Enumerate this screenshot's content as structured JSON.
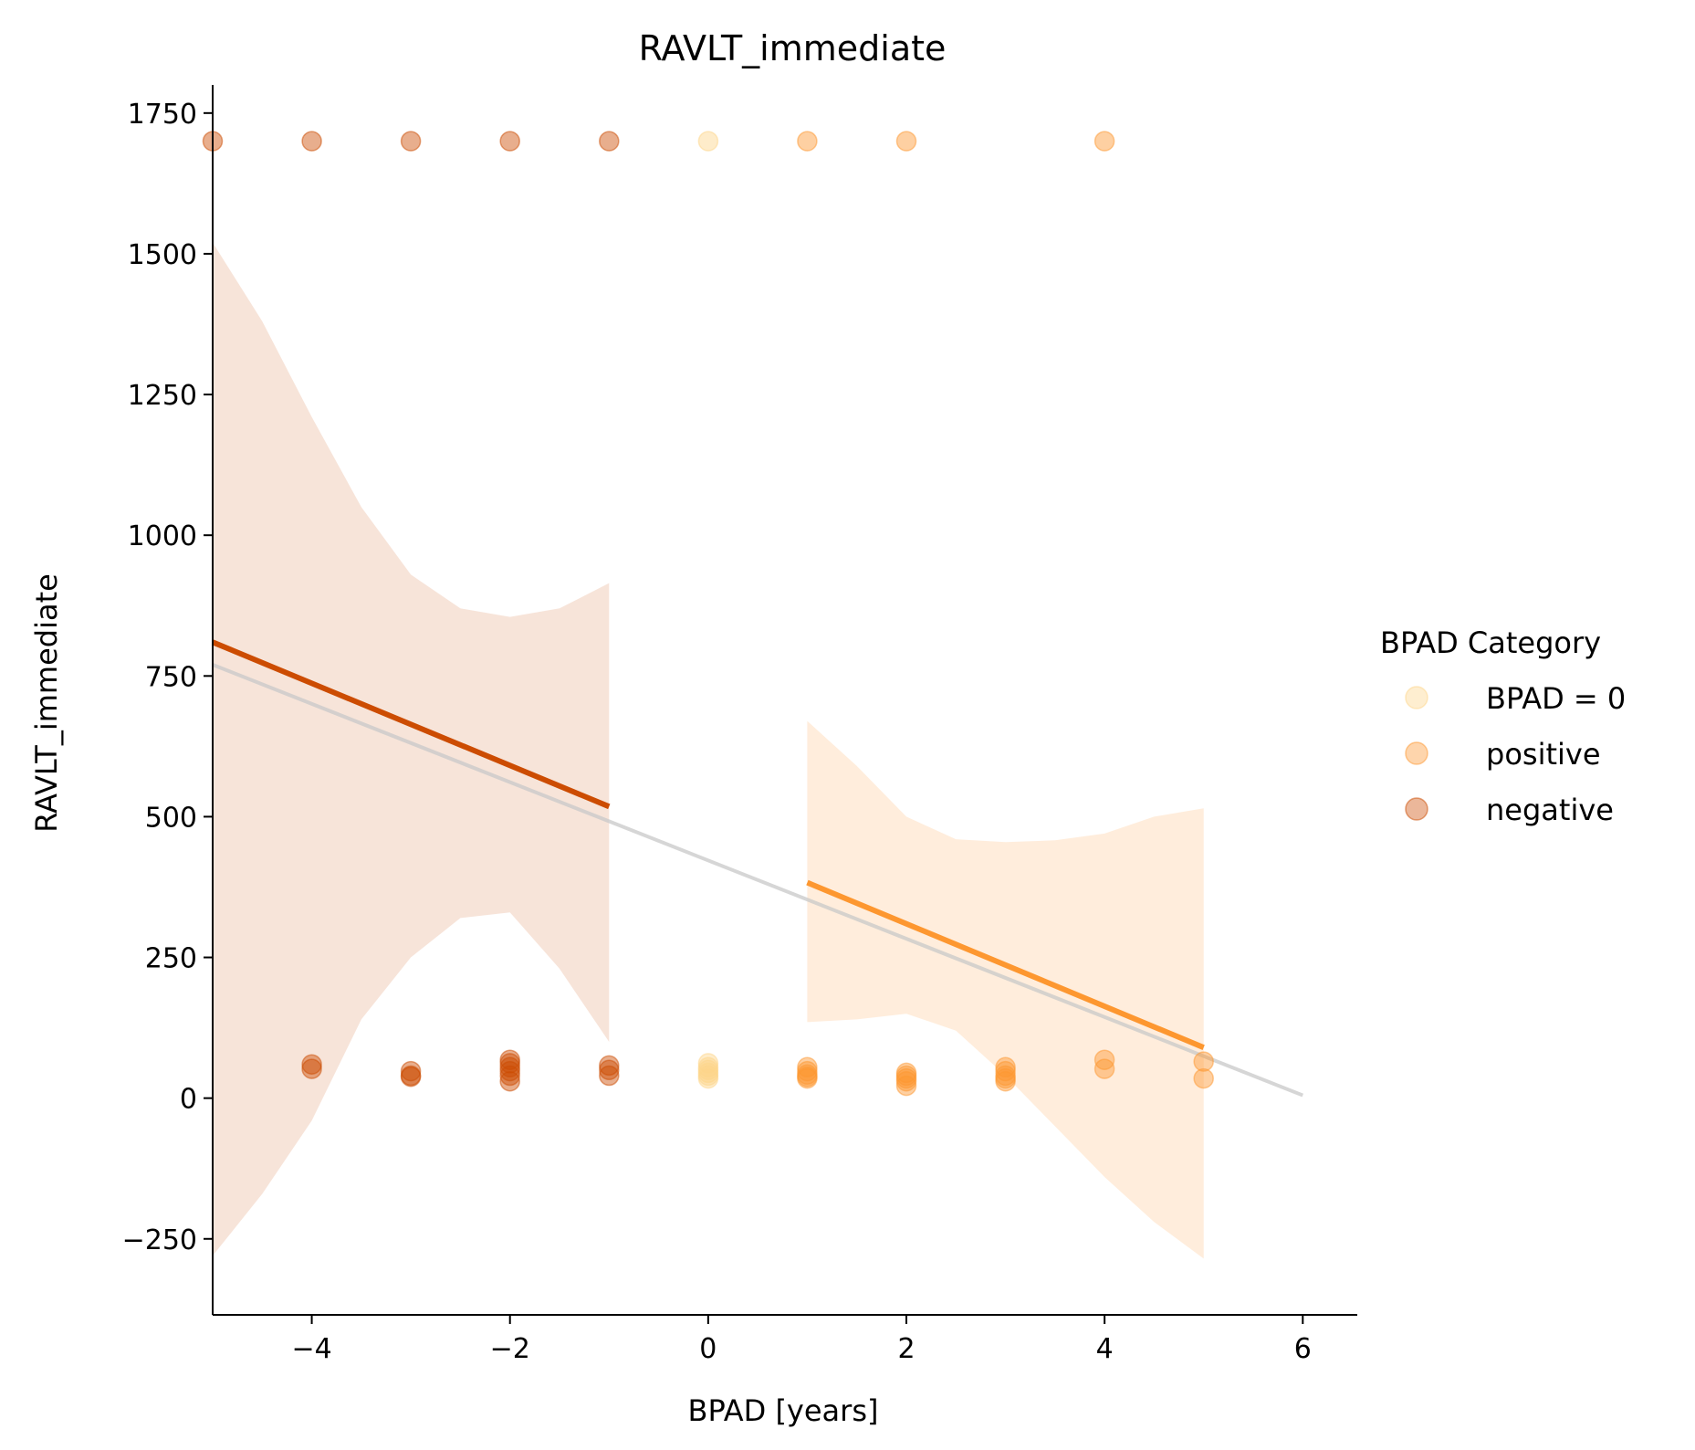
{
  "chart_data": {
    "type": "scatter",
    "title": "RAVLT_immediate",
    "xlabel": "BPAD [years]",
    "ylabel": "RAVLT_immediate",
    "xlim": [
      -5,
      6.55
    ],
    "ylim": [
      -385,
      1800
    ],
    "xticks": [
      -4,
      -2,
      0,
      2,
      4,
      6
    ],
    "xtick_labels": [
      "−4",
      "−2",
      "0",
      "2",
      "4",
      "6"
    ],
    "yticks": [
      -250,
      0,
      250,
      500,
      750,
      1000,
      1250,
      1500,
      1750
    ],
    "ytick_labels": [
      "−250",
      "0",
      "250",
      "500",
      "750",
      "1000",
      "1250",
      "1500",
      "1750"
    ],
    "grid": false,
    "legend": {
      "title": "BPAD Category",
      "placement": "center-right, outside plot",
      "entries": [
        "BPAD = 0",
        "positive",
        "negative"
      ]
    },
    "colors": {
      "zero": "#fdd58a",
      "positive": "#fd9730",
      "negative": "#cc4c02",
      "overall_fit": "#c8c8c8",
      "negative_band": "#cc4c02",
      "positive_band": "#fd9730"
    },
    "series": [
      {
        "name": "BPAD = 0",
        "key": "zero",
        "points": [
          [
            0,
            1700
          ],
          [
            0,
            62
          ],
          [
            0,
            55
          ],
          [
            0,
            50
          ],
          [
            0,
            45
          ],
          [
            0,
            40
          ],
          [
            0,
            35
          ]
        ]
      },
      {
        "name": "positive",
        "key": "positive",
        "points": [
          [
            1,
            1700
          ],
          [
            2,
            1700
          ],
          [
            4,
            1700
          ],
          [
            1,
            55
          ],
          [
            1,
            48
          ],
          [
            1,
            42
          ],
          [
            1,
            38
          ],
          [
            1,
            35
          ],
          [
            2,
            45
          ],
          [
            2,
            40
          ],
          [
            2,
            35
          ],
          [
            2,
            30
          ],
          [
            2,
            22
          ],
          [
            3,
            55
          ],
          [
            3,
            48
          ],
          [
            3,
            40
          ],
          [
            3,
            35
          ],
          [
            3,
            30
          ],
          [
            4,
            68
          ],
          [
            4,
            52
          ],
          [
            5,
            65
          ],
          [
            5,
            35
          ]
        ]
      },
      {
        "name": "negative",
        "key": "negative",
        "points": [
          [
            -5,
            1700
          ],
          [
            -4,
            1700
          ],
          [
            -3,
            1700
          ],
          [
            -2,
            1700
          ],
          [
            -1,
            1700
          ],
          [
            -4,
            60
          ],
          [
            -4,
            52
          ],
          [
            -3,
            48
          ],
          [
            -3,
            40
          ],
          [
            -3,
            38
          ],
          [
            -2,
            68
          ],
          [
            -2,
            62
          ],
          [
            -2,
            55
          ],
          [
            -2,
            48
          ],
          [
            -2,
            40
          ],
          [
            -2,
            30
          ],
          [
            -1,
            58
          ],
          [
            -1,
            50
          ],
          [
            -1,
            40
          ]
        ]
      }
    ],
    "fits": [
      {
        "key": "overall_fit",
        "x": [
          -5,
          6
        ],
        "y": [
          770,
          5
        ]
      },
      {
        "key": "negative",
        "x": [
          -5,
          -1
        ],
        "y": [
          810,
          518
        ]
      },
      {
        "key": "positive",
        "x": [
          1,
          5
        ],
        "y": [
          383,
          90
        ]
      }
    ],
    "bands": [
      {
        "key": "negative_band",
        "x": [
          -5,
          -4.5,
          -4,
          -3.5,
          -3,
          -2.5,
          -2,
          -1.5,
          -1
        ],
        "upper": [
          1520,
          1380,
          1210,
          1050,
          930,
          870,
          855,
          870,
          915
        ],
        "lower": [
          -280,
          -170,
          -40,
          140,
          250,
          320,
          330,
          230,
          100
        ]
      },
      {
        "key": "positive_band",
        "x": [
          1,
          1.5,
          2,
          2.5,
          3,
          3.5,
          4,
          4.5,
          5
        ],
        "upper": [
          670,
          590,
          500,
          460,
          455,
          458,
          470,
          500,
          515
        ],
        "lower": [
          135,
          140,
          150,
          120,
          40,
          -50,
          -140,
          -220,
          -285
        ]
      }
    ]
  }
}
